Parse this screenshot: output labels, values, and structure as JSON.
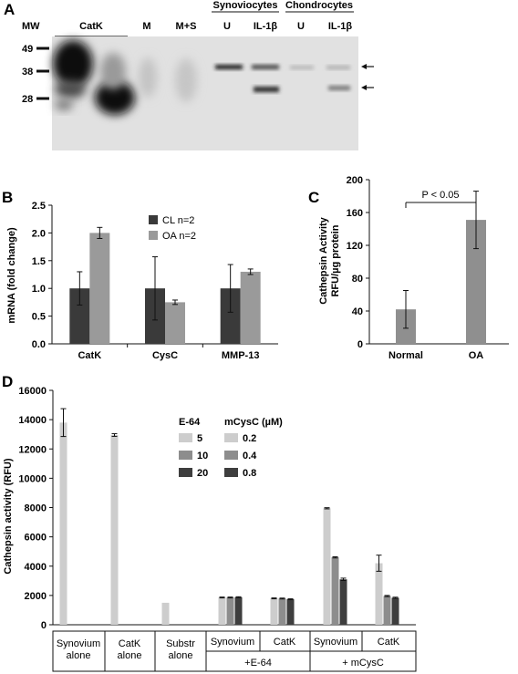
{
  "figure": {
    "panel_labels": [
      "A",
      "B",
      "C",
      "D"
    ]
  },
  "gel": {
    "mw_header": "MW",
    "lane_labels": [
      "CatK",
      "M",
      "M+S",
      "U",
      "IL-1β",
      "U",
      "IL-1β"
    ],
    "group_labels": [
      "Synoviocytes",
      "Chondrocytes"
    ],
    "mw_markers": [
      "49",
      "38",
      "28"
    ]
  },
  "chart_data": [
    {
      "id": "B",
      "type": "bar",
      "categories": [
        "CatK",
        "CysC",
        "MMP-13"
      ],
      "series": [
        {
          "name": "CL n=2",
          "color": "#3a3a3a",
          "values": [
            1.0,
            1.0,
            1.0
          ],
          "errors": [
            0.3,
            0.57,
            0.43
          ]
        },
        {
          "name": "OA n=2",
          "color": "#9a9a9a",
          "values": [
            2.0,
            0.75,
            1.3
          ],
          "errors": [
            0.1,
            0.04,
            0.05
          ]
        }
      ],
      "ylabel": "mRNA (fold change)",
      "ylim": [
        0,
        2.5
      ],
      "yticks": [
        "0.0",
        "0.5",
        "1.0",
        "1.5",
        "2.0",
        "2.5"
      ],
      "legend": "top-center"
    },
    {
      "id": "C",
      "type": "bar",
      "categories": [
        "Normal",
        "OA"
      ],
      "values": [
        42,
        151
      ],
      "errors": [
        23,
        35
      ],
      "bar_color": "#8f8f8f",
      "ylabel_lines": [
        "Cathepsin Activity",
        "RFU/µg protein"
      ],
      "ylim": [
        0,
        200
      ],
      "yticks": [
        "0",
        "40",
        "80",
        "120",
        "160",
        "200"
      ],
      "annotation": "P  < 0.05"
    },
    {
      "id": "D",
      "type": "bar",
      "ylabel": "Cathepsin activity (RFU)",
      "ylim": [
        0,
        16000
      ],
      "yticks": [
        "0",
        "2000",
        "4000",
        "6000",
        "8000",
        "10000",
        "12000",
        "14000",
        "16000"
      ],
      "groups": [
        {
          "values": [
            13800
          ],
          "errors": [
            950
          ]
        },
        {
          "values": [
            12950
          ],
          "errors": [
            90
          ]
        },
        {
          "values": [
            1500
          ],
          "errors": [
            0
          ]
        },
        {
          "values": [
            1860,
            1860,
            1880
          ],
          "errors": [
            30,
            30,
            30
          ]
        },
        {
          "values": [
            1800,
            1790,
            1740
          ],
          "errors": [
            30,
            30,
            30
          ]
        },
        {
          "values": [
            7950,
            4600,
            3100
          ],
          "errors": [
            40,
            40,
            80
          ]
        },
        {
          "values": [
            4200,
            1960,
            1840
          ],
          "errors": [
            550,
            40,
            40
          ]
        }
      ],
      "shade_colors": [
        "#cdcdcd",
        "#8d8d8d",
        "#3e3e3e"
      ],
      "legend": {
        "e64_header": "E-64",
        "mcysc_header": "mCysC  (µM)",
        "e64_values": [
          "5",
          "10",
          "20"
        ],
        "mcysc_values": [
          "0.2",
          "0.4",
          "0.8"
        ]
      },
      "category_table": {
        "row1": [
          [
            "Synovium",
            "alone"
          ],
          [
            "CatK",
            "alone"
          ],
          [
            "Substr",
            "alone"
          ],
          [
            "Synovium"
          ],
          [
            "CatK"
          ],
          [
            "Synovium"
          ],
          [
            "CatK"
          ]
        ],
        "row2": [
          "+E-64",
          "+ mCysC"
        ]
      }
    }
  ]
}
